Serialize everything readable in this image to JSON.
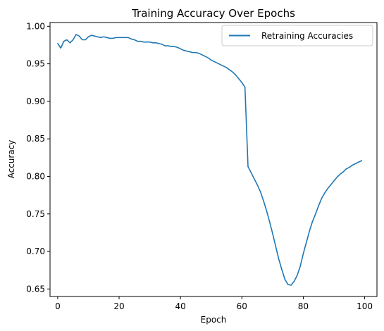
{
  "chart_data": {
    "type": "line",
    "title": "Training Accuracy Over Epochs",
    "xlabel": "Epoch",
    "ylabel": "Accuracy",
    "xlim": [
      -2.5,
      104
    ],
    "ylim": [
      0.64,
      1.005
    ],
    "xticks": [
      0,
      20,
      40,
      60,
      80,
      100
    ],
    "yticks": [
      0.65,
      0.7,
      0.75,
      0.8,
      0.85,
      0.9,
      0.95,
      1.0
    ],
    "ytick_labels": [
      "0.65",
      "0.70",
      "0.75",
      "0.80",
      "0.85",
      "0.90",
      "0.95",
      "1.00"
    ],
    "grid": false,
    "legend": {
      "position": "top-right",
      "entries": [
        "Retraining Accuracies"
      ]
    },
    "series": [
      {
        "name": "Retraining Accuracies",
        "color": "#1f77b4",
        "x": [
          0,
          1,
          2,
          3,
          4,
          5,
          6,
          7,
          8,
          9,
          10,
          11,
          12,
          13,
          14,
          15,
          16,
          17,
          18,
          19,
          20,
          21,
          22,
          23,
          24,
          25,
          26,
          27,
          28,
          29,
          30,
          31,
          32,
          33,
          34,
          35,
          36,
          37,
          38,
          39,
          40,
          41,
          42,
          43,
          44,
          45,
          46,
          47,
          48,
          49,
          50,
          51,
          52,
          53,
          54,
          55,
          56,
          57,
          58,
          59,
          60,
          61,
          62,
          63,
          64,
          65,
          66,
          67,
          68,
          69,
          70,
          71,
          72,
          73,
          74,
          75,
          76,
          77,
          78,
          79,
          80,
          81,
          82,
          83,
          84,
          85,
          86,
          87,
          88,
          89,
          90,
          91,
          92,
          93,
          94,
          95,
          96,
          97,
          98,
          99
        ],
        "values": [
          0.977,
          0.971,
          0.98,
          0.982,
          0.978,
          0.982,
          0.989,
          0.987,
          0.982,
          0.982,
          0.986,
          0.988,
          0.987,
          0.986,
          0.985,
          0.986,
          0.985,
          0.984,
          0.984,
          0.985,
          0.985,
          0.985,
          0.985,
          0.985,
          0.983,
          0.982,
          0.98,
          0.98,
          0.979,
          0.979,
          0.979,
          0.978,
          0.978,
          0.977,
          0.976,
          0.974,
          0.974,
          0.973,
          0.973,
          0.972,
          0.97,
          0.968,
          0.967,
          0.966,
          0.965,
          0.965,
          0.964,
          0.962,
          0.96,
          0.958,
          0.955,
          0.953,
          0.951,
          0.949,
          0.947,
          0.945,
          0.942,
          0.939,
          0.935,
          0.93,
          0.925,
          0.919,
          0.813,
          0.805,
          0.797,
          0.789,
          0.78,
          0.768,
          0.755,
          0.74,
          0.724,
          0.707,
          0.69,
          0.676,
          0.663,
          0.656,
          0.655,
          0.66,
          0.668,
          0.68,
          0.697,
          0.712,
          0.727,
          0.74,
          0.75,
          0.761,
          0.771,
          0.778,
          0.784,
          0.789,
          0.794,
          0.799,
          0.803,
          0.806,
          0.81,
          0.812,
          0.815,
          0.817,
          0.819,
          0.821
        ]
      }
    ]
  }
}
